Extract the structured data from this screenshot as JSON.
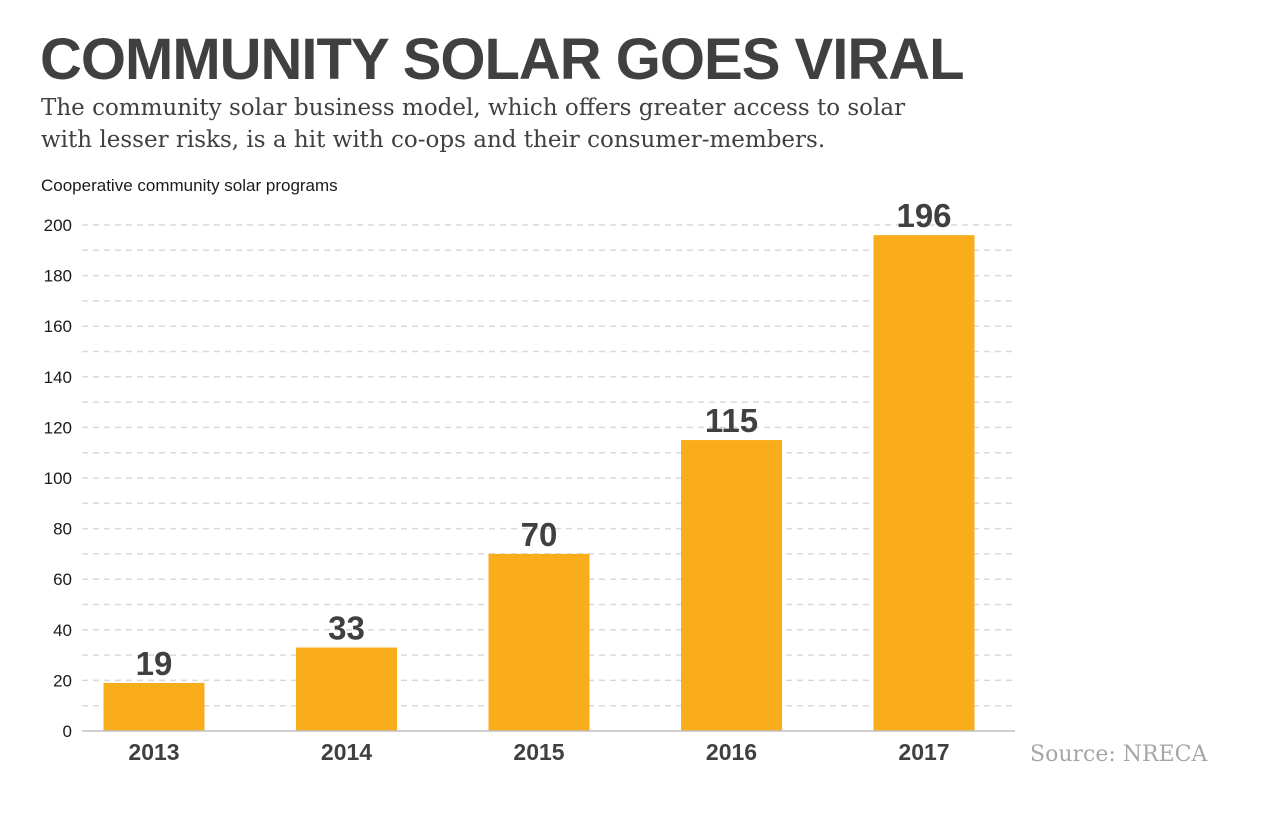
{
  "header": {
    "title": "COMMUNITY SOLAR GOES VIRAL",
    "subtitle": "The community solar business model, which offers greater access to solar with lesser risks, is a hit with co-ops and their consumer-members."
  },
  "source": "Source: NRECA",
  "colors": {
    "bar": "#FAAD1B",
    "text": "#404040",
    "grid": "#d9d9d9",
    "source": "#a6a6a6"
  },
  "chart_data": {
    "type": "bar",
    "title": "COMMUNITY SOLAR GOES VIRAL",
    "xlabel": "",
    "ylabel": "Cooperative community solar programs",
    "categories": [
      "2013",
      "2014",
      "2015",
      "2016",
      "2017"
    ],
    "values": [
      19,
      33,
      70,
      115,
      196
    ],
    "data_labels": [
      "19",
      "33",
      "70",
      "115",
      "196"
    ],
    "ylim": [
      0,
      200
    ],
    "yticks": [
      0,
      20,
      40,
      60,
      80,
      100,
      120,
      140,
      160,
      180,
      200
    ],
    "grid": true,
    "grid_style": "dashed",
    "legend": "none"
  }
}
